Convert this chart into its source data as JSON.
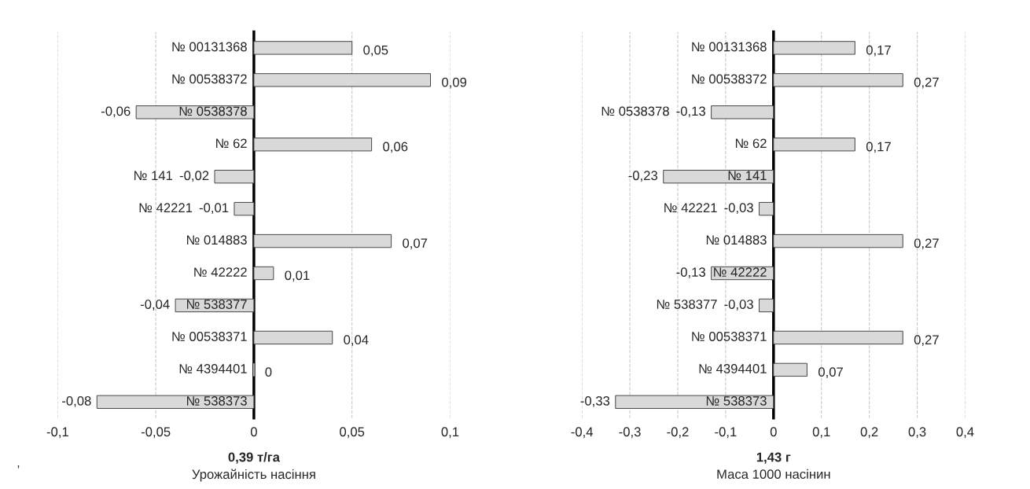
{
  "chart_data": [
    {
      "type": "bar",
      "orientation": "horizontal",
      "xlabel": "0,39 т/га",
      "annotations": [
        "Урожайність насіння",
        ","
      ],
      "categories": [
        "№ 00131368",
        "№ 00538372",
        "№ 0538378",
        "№ 62",
        "№ 141",
        "№ 42221",
        "№ 014883",
        "№ 42222",
        "№ 538377",
        "№ 00538371",
        "№ 4394401",
        "№ 538373"
      ],
      "series": [
        {
          "color": "#d9d9d9",
          "values": [
            0.05,
            0.09,
            -0.06,
            0.06,
            -0.02,
            -0.01,
            0.07,
            0.01,
            -0.04,
            0.04,
            0,
            -0.08
          ],
          "value_labels": [
            "0,05",
            "0,09",
            "-0,06",
            "0,06",
            "-0,02",
            "-0,01",
            "0,07",
            "0,01",
            "-0,04",
            "0,04",
            "0",
            "-0,08"
          ]
        }
      ],
      "xlim": [
        -0.1,
        0.1
      ],
      "xticks": [
        {
          "value": -0.1,
          "label": "-0,1"
        },
        {
          "value": -0.05,
          "label": "-0,05"
        },
        0,
        {
          "value": 0.05,
          "label": "0,05"
        },
        {
          "value": 0.1,
          "label": "0,1"
        }
      ],
      "grid": "x",
      "legend": false
    },
    {
      "type": "bar",
      "orientation": "horizontal",
      "xlabel": "1,43 г",
      "annotations": [
        "Маса 1000 насінин"
      ],
      "categories": [
        "№ 00131368",
        "№ 00538372",
        "№ 0538378",
        "№ 62",
        "№ 141",
        "№ 42221",
        "№ 014883",
        "№ 42222",
        "№ 538377",
        "№ 00538371",
        "№ 4394401",
        "№ 538373"
      ],
      "series": [
        {
          "color": "#d9d9d9",
          "values": [
            0.17,
            0.27,
            -0.13,
            0.17,
            -0.23,
            -0.03,
            0.27,
            -0.13,
            -0.03,
            0.27,
            0.07,
            -0.33
          ],
          "value_labels": [
            "0,17",
            "0,27",
            "-0,13",
            "0,17",
            "-0,23",
            "-0,03",
            "0,27",
            "-0,13",
            "-0,03",
            "0,27",
            "0,07",
            "-0,33"
          ]
        }
      ],
      "xlim": [
        -0.4,
        0.4
      ],
      "xticks": [
        {
          "value": -0.4,
          "label": "-0,4"
        },
        {
          "value": -0.3,
          "label": "-0,3"
        },
        {
          "value": -0.2,
          "label": "-0,2"
        },
        {
          "value": -0.1,
          "label": "-0,1"
        },
        0,
        {
          "value": 0.1,
          "label": "0,1"
        },
        {
          "value": 0.2,
          "label": "0,2"
        },
        {
          "value": 0.3,
          "label": "0,3"
        },
        {
          "value": 0.4,
          "label": "0,4"
        }
      ],
      "grid": "x",
      "legend": false
    }
  ]
}
